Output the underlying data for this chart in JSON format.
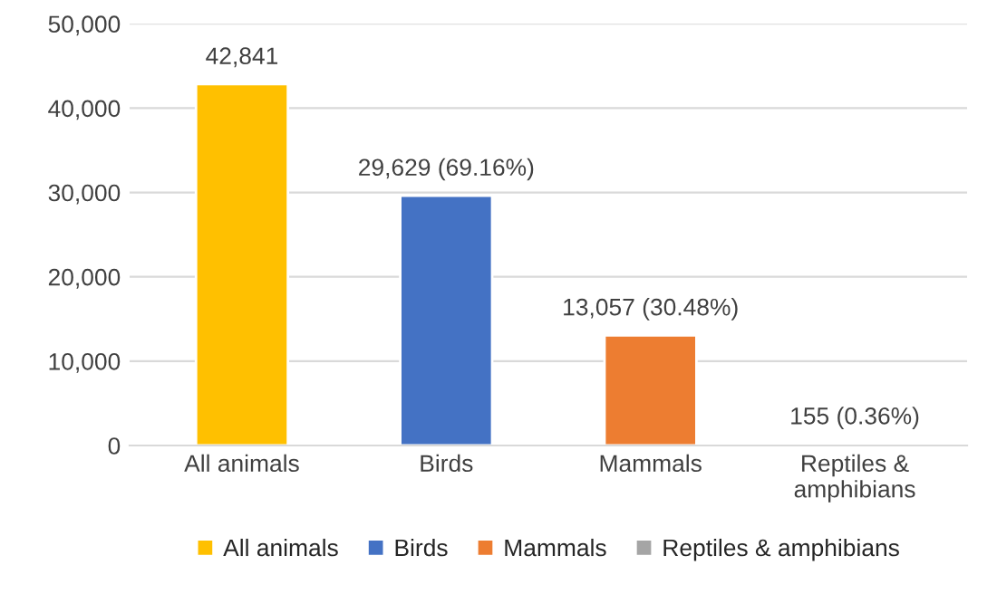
{
  "chart_data": {
    "type": "bar",
    "categories": [
      "All animals",
      "Birds",
      "Mammals",
      "Reptiles & amphibians"
    ],
    "series": [
      {
        "name": "All animals",
        "color": "#ffc000",
        "values": [
          42841,
          null,
          null,
          null
        ],
        "value_labels": [
          "42,841",
          null,
          null,
          null
        ]
      },
      {
        "name": "Birds",
        "color": "#4472c4",
        "values": [
          null,
          29629,
          null,
          null
        ],
        "value_labels": [
          null,
          "29,629 (69.16%)",
          null,
          null
        ]
      },
      {
        "name": "Mammals",
        "color": "#ed7d31",
        "values": [
          null,
          null,
          13057,
          null
        ],
        "value_labels": [
          null,
          null,
          "13,057 (30.48%)",
          null
        ]
      },
      {
        "name": "Reptiles & amphibians",
        "color": "#a5a5a5",
        "values": [
          null,
          null,
          null,
          155
        ],
        "value_labels": [
          null,
          null,
          null,
          "155 (0.36%)"
        ]
      }
    ],
    "ylim": [
      0,
      50000
    ],
    "yticks": [
      0,
      {
        "value": 10000,
        "label": "10,000"
      },
      {
        "value": 20000,
        "label": "20,000"
      },
      {
        "value": 30000,
        "label": "30,000"
      },
      {
        "value": 40000,
        "label": "40,000"
      },
      {
        "value": 50000,
        "label": "50,000"
      }
    ],
    "grid": "y",
    "legend": "bottom"
  }
}
